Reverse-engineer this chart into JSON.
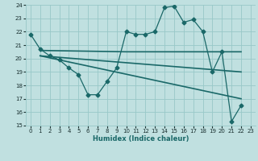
{
  "xlabel": "Humidex (Indice chaleur)",
  "bg_color": "#c0e0e0",
  "grid_color": "#98c8c8",
  "line_color": "#1a6868",
  "tick_color": "#1a3030",
  "xlim": [
    -0.5,
    23.5
  ],
  "ylim": [
    15,
    24
  ],
  "xticks": [
    0,
    1,
    2,
    3,
    4,
    5,
    6,
    7,
    8,
    9,
    10,
    11,
    12,
    13,
    14,
    15,
    16,
    17,
    18,
    19,
    20,
    21,
    22,
    23
  ],
  "yticks": [
    15,
    16,
    17,
    18,
    19,
    20,
    21,
    22,
    23,
    24
  ],
  "series": [
    {
      "x": [
        0,
        1,
        2,
        3,
        4,
        5,
        6,
        7,
        8,
        9,
        10,
        11,
        12,
        13,
        14,
        15,
        16,
        17,
        18,
        19,
        20,
        21,
        22
      ],
      "y": [
        21.8,
        20.7,
        20.2,
        19.9,
        19.3,
        18.8,
        17.3,
        17.3,
        18.3,
        19.3,
        22.0,
        21.8,
        21.8,
        22.0,
        23.8,
        23.9,
        22.7,
        22.9,
        22.0,
        19.0,
        20.5,
        15.3,
        16.5
      ],
      "marker": "D",
      "markersize": 2.5,
      "linewidth": 0.9
    },
    {
      "x": [
        1,
        10,
        22
      ],
      "y": [
        20.6,
        20.5,
        20.5
      ],
      "marker": null,
      "markersize": 0,
      "linewidth": 1.2
    },
    {
      "x": [
        1,
        22
      ],
      "y": [
        20.2,
        19.0
      ],
      "marker": null,
      "markersize": 0,
      "linewidth": 1.2
    },
    {
      "x": [
        1,
        22
      ],
      "y": [
        20.2,
        17.0
      ],
      "marker": null,
      "markersize": 0,
      "linewidth": 1.2
    }
  ]
}
